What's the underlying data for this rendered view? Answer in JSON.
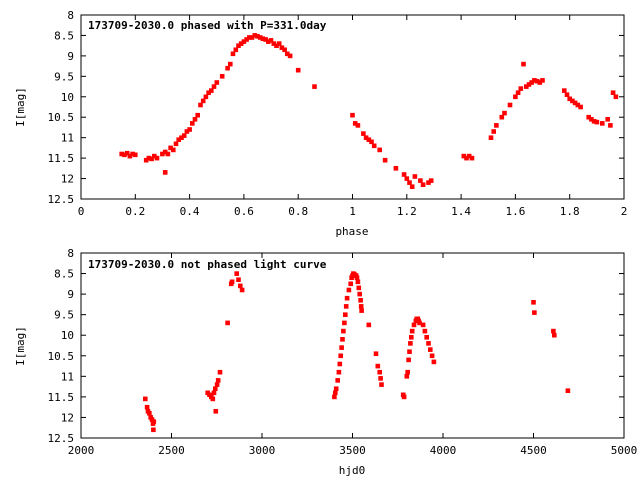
{
  "chart_data": [
    {
      "type": "scatter",
      "title": "173709-2030.0 phased with P=331.0day",
      "xlabel": "phase",
      "ylabel": "I[mag]",
      "xlim": [
        0,
        2
      ],
      "ylim": [
        12.5,
        8
      ],
      "y_inverted": true,
      "grid": false,
      "color": "#ff0000",
      "x_ticks": [
        "0",
        "0.2",
        "0.4",
        "0.6",
        "0.8",
        "1",
        "1.2",
        "1.4",
        "1.6",
        "1.8",
        "2"
      ],
      "y_ticks": [
        "8",
        "8.5",
        "9",
        "9.5",
        "10",
        "10.5",
        "11",
        "11.5",
        "12",
        "12.5"
      ],
      "series": [
        {
          "points": [
            [
              0.15,
              11.4
            ],
            [
              0.16,
              11.42
            ],
            [
              0.17,
              11.38
            ],
            [
              0.18,
              11.45
            ],
            [
              0.19,
              11.4
            ],
            [
              0.2,
              11.42
            ],
            [
              0.24,
              11.55
            ],
            [
              0.25,
              11.5
            ],
            [
              0.26,
              11.52
            ],
            [
              0.27,
              11.45
            ],
            [
              0.28,
              11.5
            ],
            [
              0.3,
              11.4
            ],
            [
              0.31,
              11.35
            ],
            [
              0.31,
              11.85
            ],
            [
              0.32,
              11.4
            ],
            [
              0.33,
              11.25
            ],
            [
              0.34,
              11.3
            ],
            [
              0.35,
              11.15
            ],
            [
              0.36,
              11.05
            ],
            [
              0.37,
              11.0
            ],
            [
              0.38,
              10.95
            ],
            [
              0.39,
              10.85
            ],
            [
              0.4,
              10.8
            ],
            [
              0.41,
              10.65
            ],
            [
              0.42,
              10.55
            ],
            [
              0.43,
              10.45
            ],
            [
              0.44,
              10.2
            ],
            [
              0.45,
              10.1
            ],
            [
              0.46,
              10.0
            ],
            [
              0.47,
              9.9
            ],
            [
              0.48,
              9.85
            ],
            [
              0.49,
              9.75
            ],
            [
              0.5,
              9.65
            ],
            [
              0.52,
              9.5
            ],
            [
              0.54,
              9.3
            ],
            [
              0.55,
              9.2
            ],
            [
              0.56,
              8.95
            ],
            [
              0.57,
              8.85
            ],
            [
              0.58,
              8.75
            ],
            [
              0.59,
              8.7
            ],
            [
              0.6,
              8.65
            ],
            [
              0.61,
              8.6
            ],
            [
              0.62,
              8.55
            ],
            [
              0.63,
              8.55
            ],
            [
              0.64,
              8.5
            ],
            [
              0.65,
              8.52
            ],
            [
              0.66,
              8.55
            ],
            [
              0.67,
              8.58
            ],
            [
              0.68,
              8.6
            ],
            [
              0.69,
              8.65
            ],
            [
              0.7,
              8.62
            ],
            [
              0.71,
              8.7
            ],
            [
              0.72,
              8.75
            ],
            [
              0.73,
              8.7
            ],
            [
              0.74,
              8.8
            ],
            [
              0.75,
              8.85
            ],
            [
              0.76,
              8.95
            ],
            [
              0.77,
              9.0
            ],
            [
              0.8,
              9.35
            ],
            [
              0.86,
              9.75
            ],
            [
              1.0,
              10.45
            ],
            [
              1.01,
              10.65
            ],
            [
              1.02,
              10.7
            ],
            [
              1.04,
              10.9
            ],
            [
              1.05,
              11.0
            ],
            [
              1.06,
              11.05
            ],
            [
              1.07,
              11.1
            ],
            [
              1.08,
              11.2
            ],
            [
              1.1,
              11.3
            ],
            [
              1.12,
              11.55
            ],
            [
              1.16,
              11.75
            ],
            [
              1.19,
              11.9
            ],
            [
              1.2,
              12.0
            ],
            [
              1.21,
              12.1
            ],
            [
              1.22,
              12.2
            ],
            [
              1.23,
              11.95
            ],
            [
              1.25,
              12.05
            ],
            [
              1.26,
              12.15
            ],
            [
              1.28,
              12.1
            ],
            [
              1.29,
              12.05
            ],
            [
              1.41,
              11.45
            ],
            [
              1.42,
              11.5
            ],
            [
              1.43,
              11.45
            ],
            [
              1.44,
              11.5
            ],
            [
              1.51,
              11.0
            ],
            [
              1.52,
              10.85
            ],
            [
              1.53,
              10.7
            ],
            [
              1.55,
              10.5
            ],
            [
              1.56,
              10.4
            ],
            [
              1.58,
              10.2
            ],
            [
              1.6,
              10.0
            ],
            [
              1.61,
              9.9
            ],
            [
              1.62,
              9.8
            ],
            [
              1.63,
              9.2
            ],
            [
              1.64,
              9.75
            ],
            [
              1.65,
              9.7
            ],
            [
              1.66,
              9.65
            ],
            [
              1.67,
              9.6
            ],
            [
              1.68,
              9.62
            ],
            [
              1.69,
              9.65
            ],
            [
              1.7,
              9.6
            ],
            [
              1.78,
              9.85
            ],
            [
              1.79,
              9.95
            ],
            [
              1.8,
              10.05
            ],
            [
              1.81,
              10.1
            ],
            [
              1.82,
              10.15
            ],
            [
              1.83,
              10.2
            ],
            [
              1.84,
              10.25
            ],
            [
              1.87,
              10.5
            ],
            [
              1.88,
              10.55
            ],
            [
              1.89,
              10.6
            ],
            [
              1.9,
              10.62
            ],
            [
              1.92,
              10.65
            ],
            [
              1.94,
              10.55
            ],
            [
              1.95,
              10.7
            ],
            [
              1.96,
              9.9
            ],
            [
              1.97,
              10.0
            ]
          ]
        }
      ]
    },
    {
      "type": "scatter",
      "title": "173709-2030.0 not phased light curve",
      "xlabel": "hjd0",
      "ylabel": "I[mag]",
      "xlim": [
        2000,
        5000
      ],
      "ylim": [
        12.5,
        8
      ],
      "y_inverted": true,
      "grid": false,
      "color": "#ff0000",
      "x_ticks": [
        "2000",
        "2500",
        "3000",
        "3500",
        "4000",
        "4500",
        "5000"
      ],
      "y_ticks": [
        "8",
        "8.5",
        "9",
        "9.5",
        "10",
        "10.5",
        "11",
        "11.5",
        "12",
        "12.5"
      ],
      "series": [
        {
          "points": [
            [
              2355,
              11.55
            ],
            [
              2365,
              11.75
            ],
            [
              2370,
              11.85
            ],
            [
              2378,
              11.9
            ],
            [
              2385,
              12.0
            ],
            [
              2392,
              12.05
            ],
            [
              2398,
              12.15
            ],
            [
              2400,
              12.3
            ],
            [
              2402,
              12.1
            ],
            [
              2700,
              11.4
            ],
            [
              2710,
              11.45
            ],
            [
              2720,
              11.5
            ],
            [
              2728,
              11.55
            ],
            [
              2735,
              11.4
            ],
            [
              2742,
              11.3
            ],
            [
              2745,
              11.85
            ],
            [
              2752,
              11.2
            ],
            [
              2758,
              11.1
            ],
            [
              2768,
              10.9
            ],
            [
              2810,
              9.7
            ],
            [
              2830,
              8.75
            ],
            [
              2835,
              8.7
            ],
            [
              2860,
              8.5
            ],
            [
              2870,
              8.65
            ],
            [
              2880,
              8.8
            ],
            [
              2890,
              8.9
            ],
            [
              3400,
              11.5
            ],
            [
              3405,
              11.4
            ],
            [
              3410,
              11.3
            ],
            [
              3418,
              11.1
            ],
            [
              3425,
              10.9
            ],
            [
              3430,
              10.7
            ],
            [
              3435,
              10.5
            ],
            [
              3440,
              10.3
            ],
            [
              3445,
              10.1
            ],
            [
              3450,
              9.9
            ],
            [
              3455,
              9.7
            ],
            [
              3460,
              9.5
            ],
            [
              3465,
              9.3
            ],
            [
              3470,
              9.1
            ],
            [
              3480,
              8.9
            ],
            [
              3490,
              8.75
            ],
            [
              3495,
              8.6
            ],
            [
              3500,
              8.55
            ],
            [
              3505,
              8.5
            ],
            [
              3510,
              8.52
            ],
            [
              3515,
              8.55
            ],
            [
              3520,
              8.55
            ],
            [
              3525,
              8.6
            ],
            [
              3530,
              8.7
            ],
            [
              3535,
              8.85
            ],
            [
              3540,
              9.0
            ],
            [
              3545,
              9.15
            ],
            [
              3548,
              9.3
            ],
            [
              3550,
              9.4
            ],
            [
              3590,
              9.75
            ],
            [
              3630,
              10.45
            ],
            [
              3640,
              10.75
            ],
            [
              3650,
              10.9
            ],
            [
              3655,
              11.05
            ],
            [
              3660,
              11.2
            ],
            [
              3780,
              11.45
            ],
            [
              3785,
              11.5
            ],
            [
              3800,
              11.0
            ],
            [
              3805,
              10.9
            ],
            [
              3810,
              10.6
            ],
            [
              3815,
              10.4
            ],
            [
              3820,
              10.2
            ],
            [
              3825,
              10.05
            ],
            [
              3830,
              9.9
            ],
            [
              3840,
              9.75
            ],
            [
              3850,
              9.65
            ],
            [
              3855,
              9.6
            ],
            [
              3860,
              9.6
            ],
            [
              3865,
              9.65
            ],
            [
              3870,
              9.7
            ],
            [
              3890,
              9.75
            ],
            [
              3900,
              9.9
            ],
            [
              3910,
              10.05
            ],
            [
              3920,
              10.2
            ],
            [
              3930,
              10.35
            ],
            [
              3940,
              10.5
            ],
            [
              3950,
              10.65
            ],
            [
              4500,
              9.2
            ],
            [
              4505,
              9.45
            ],
            [
              4610,
              9.9
            ],
            [
              4615,
              10.0
            ],
            [
              4690,
              11.35
            ]
          ]
        }
      ]
    }
  ]
}
